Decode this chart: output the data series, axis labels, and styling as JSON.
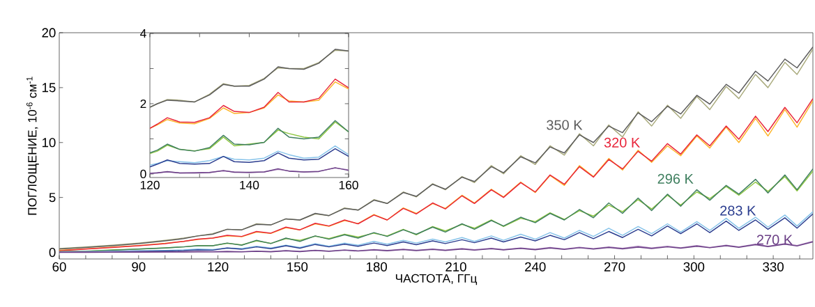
{
  "chart_data": [
    {
      "type": "line",
      "xlabel": "ЧАСТОТА, ГГц",
      "ylabel": "ПОГЛОЩЕНИЕ, 10$^{-6}$ см$^{-1}$",
      "xlim": [
        60,
        345
      ],
      "ylim": [
        -0.6,
        20
      ],
      "xticks": [
        60,
        {
          "value": 70,
          "label": null
        },
        {
          "value": 80,
          "label": null
        },
        90,
        {
          "value": 100,
          "label": null
        },
        {
          "value": 110,
          "label": null
        },
        120,
        {
          "value": 130,
          "label": null
        },
        {
          "value": 140,
          "label": null
        },
        150,
        {
          "value": 160,
          "label": null
        },
        {
          "value": 170,
          "label": null
        },
        180,
        {
          "value": 190,
          "label": null
        },
        {
          "value": 200,
          "label": null
        },
        210,
        {
          "value": 220,
          "label": null
        },
        {
          "value": 230,
          "label": null
        },
        240,
        {
          "value": 250,
          "label": null
        },
        {
          "value": 260,
          "label": null
        },
        270,
        {
          "value": 280,
          "label": null
        },
        {
          "value": 290,
          "label": null
        },
        300,
        {
          "value": 310,
          "label": null
        },
        {
          "value": 320,
          "label": null
        },
        330,
        {
          "value": 340,
          "label": null
        }
      ],
      "yticks": [
        0,
        5,
        10,
        15,
        20
      ],
      "x": [
        60,
        70,
        80,
        90,
        100,
        107,
        112.4,
        118,
        123.5,
        129,
        134.6,
        140,
        145.7,
        151,
        156.8,
        162,
        167.9,
        173,
        179,
        184,
        190.1,
        195,
        201.2,
        206,
        212.3,
        217,
        223.4,
        228,
        234.5,
        240,
        245.6,
        251,
        256.7,
        262,
        267.8,
        273,
        278.9,
        284,
        290,
        295,
        301.1,
        306,
        312.2,
        317,
        323.3,
        328,
        334.4,
        339,
        345
      ],
      "series": [
        {
          "color": "#a9aa7c",
          "values": [
            0.35,
            0.5,
            0.65,
            0.85,
            1.1,
            1.3,
            1.5,
            1.7,
            2.1,
            2.05,
            2.6,
            2.5,
            3.05,
            2.95,
            3.5,
            3.35,
            4.05,
            3.85,
            4.8,
            4.45,
            5.5,
            5.05,
            6.25,
            5.7,
            6.9,
            6.35,
            7.9,
            7.15,
            8.8,
            8.0,
            9.7,
            8.85,
            10.8,
            9.7,
            11.6,
            10.5,
            12.8,
            11.5,
            13.4,
            12.2,
            14.2,
            13.0,
            15.1,
            14.0,
            16.2,
            15.0,
            17.3,
            16.2,
            18.5
          ]
        },
        {
          "name": "350 K",
          "color": "#5c5c5c",
          "values": [
            0.3,
            0.45,
            0.6,
            0.8,
            1.05,
            1.25,
            1.5,
            1.65,
            2.1,
            2.05,
            2.55,
            2.5,
            3.05,
            2.95,
            3.55,
            3.35,
            4.0,
            3.85,
            4.75,
            4.45,
            5.45,
            5.1,
            6.2,
            5.75,
            6.85,
            6.45,
            7.8,
            7.25,
            8.7,
            8.15,
            9.6,
            9.05,
            10.7,
            10.0,
            11.5,
            10.9,
            12.7,
            11.9,
            13.3,
            12.6,
            14.3,
            13.5,
            15.3,
            14.5,
            16.5,
            15.6,
            17.6,
            16.8,
            18.7
          ]
        },
        {
          "color": "#fdb52a",
          "values": [
            0.2,
            0.32,
            0.48,
            0.62,
            0.82,
            1.0,
            1.18,
            1.3,
            1.5,
            1.42,
            1.85,
            1.72,
            2.25,
            2.05,
            2.6,
            2.38,
            2.9,
            2.62,
            3.45,
            2.95,
            4.05,
            3.55,
            4.45,
            4.0,
            5.2,
            4.5,
            5.75,
            5.05,
            6.4,
            5.45,
            7.0,
            6.1,
            7.9,
            6.9,
            8.55,
            7.5,
            9.3,
            8.2,
            9.7,
            8.8,
            10.6,
            9.5,
            11.4,
            10.0,
            12.2,
            10.6,
            13.0,
            11.4,
            13.8
          ]
        },
        {
          "name": "320 K",
          "color": "#e8253a",
          "values": [
            0.15,
            0.3,
            0.45,
            0.6,
            0.8,
            1.0,
            1.2,
            1.3,
            1.55,
            1.45,
            1.9,
            1.75,
            2.3,
            2.05,
            2.65,
            2.4,
            2.95,
            2.6,
            3.4,
            2.95,
            4.0,
            3.5,
            4.5,
            3.95,
            5.15,
            4.45,
            5.7,
            5.0,
            6.35,
            5.5,
            7.05,
            6.2,
            7.8,
            6.85,
            8.45,
            7.6,
            9.2,
            8.3,
            9.9,
            8.95,
            10.7,
            9.7,
            11.5,
            10.3,
            12.4,
            11.0,
            13.2,
            11.8,
            14.0
          ]
        },
        {
          "color": "#8dc63f",
          "values": [
            0.08,
            0.12,
            0.22,
            0.3,
            0.42,
            0.5,
            0.62,
            0.6,
            0.82,
            0.68,
            1.05,
            0.82,
            1.25,
            1.1,
            1.48,
            1.25,
            1.65,
            1.4,
            1.75,
            1.5,
            2.1,
            1.6,
            2.35,
            1.95,
            2.55,
            2.2,
            2.95,
            2.35,
            3.1,
            2.8,
            3.6,
            3.0,
            3.8,
            3.3,
            4.3,
            3.7,
            4.8,
            3.95,
            5.2,
            4.3,
            5.5,
            4.9,
            6.0,
            5.2,
            6.4,
            5.55,
            6.9,
            5.6,
            7.4
          ]
        },
        {
          "name": "296 K",
          "color": "#3f7f5f",
          "values": [
            0.05,
            0.1,
            0.2,
            0.3,
            0.4,
            0.5,
            0.6,
            0.6,
            0.85,
            0.65,
            1.1,
            0.8,
            1.3,
            1.0,
            1.5,
            1.2,
            1.6,
            1.3,
            1.8,
            1.45,
            2.05,
            1.65,
            2.3,
            1.85,
            2.6,
            2.1,
            2.9,
            2.4,
            3.2,
            2.7,
            3.55,
            2.95,
            3.9,
            3.15,
            4.5,
            3.55,
            4.95,
            3.8,
            5.3,
            4.2,
            5.7,
            4.75,
            6.1,
            5.3,
            6.65,
            5.4,
            7.05,
            5.7,
            7.6
          ]
        },
        {
          "color": "#86c3ea",
          "values": [
            0.05,
            null,
            0.1,
            0.15,
            0.18,
            0.22,
            0.3,
            0.25,
            0.4,
            0.35,
            0.55,
            0.4,
            0.65,
            0.45,
            0.8,
            0.55,
            0.85,
            0.65,
            1.0,
            0.75,
            1.1,
            0.85,
            1.2,
            0.95,
            1.35,
            1.0,
            1.5,
            1.1,
            1.65,
            1.2,
            1.8,
            1.3,
            2.0,
            1.45,
            2.2,
            1.55,
            2.35,
            1.7,
            2.6,
            1.85,
            2.8,
            2.0,
            3.1,
            2.2,
            3.2,
            2.3,
            3.4,
            2.4,
            3.7
          ]
        },
        {
          "name": "283 K",
          "color": "#2b3d8f",
          "values": [
            0.02,
            0.04,
            0.06,
            0.1,
            0.13,
            0.16,
            0.22,
            0.2,
            0.4,
            0.28,
            0.5,
            0.33,
            0.6,
            0.38,
            0.72,
            0.5,
            0.75,
            0.55,
            0.85,
            0.62,
            0.95,
            0.7,
            1.05,
            0.8,
            1.15,
            0.88,
            1.3,
            0.95,
            1.4,
            1.05,
            1.55,
            1.15,
            1.8,
            1.25,
            1.9,
            1.35,
            2.1,
            1.5,
            2.4,
            1.7,
            2.6,
            1.8,
            2.85,
            2.0,
            2.95,
            2.1,
            3.15,
            2.2,
            3.5
          ]
        },
        {
          "color": "#a57db8",
          "values": [
            0.02,
            0.03,
            0.03,
            0.05,
            0.05,
            0.06,
            0.08,
            0.06,
            0.1,
            0.06,
            0.12,
            0.08,
            0.16,
            0.1,
            0.2,
            0.12,
            0.22,
            0.15,
            0.25,
            0.17,
            0.28,
            0.2,
            0.3,
            0.21,
            0.35,
            0.24,
            0.36,
            0.26,
            0.4,
            0.28,
            0.45,
            0.3,
            0.46,
            0.34,
            0.5,
            0.36,
            0.55,
            0.4,
            0.55,
            0.42,
            0.62,
            0.45,
            0.65,
            0.5,
            0.75,
            0.55,
            0.8,
            0.62,
            1.0
          ]
        },
        {
          "name": "270 K",
          "color": "#6b3f86",
          "values": [
            0.0,
            0.0,
            0.01,
            0.02,
            0.03,
            0.03,
            0.05,
            0.04,
            0.07,
            0.04,
            0.1,
            0.05,
            0.15,
            0.07,
            0.18,
            0.1,
            0.2,
            0.12,
            0.22,
            0.14,
            0.25,
            0.16,
            0.27,
            0.18,
            0.3,
            0.2,
            0.33,
            0.22,
            0.36,
            0.24,
            0.4,
            0.27,
            0.42,
            0.3,
            0.45,
            0.32,
            0.48,
            0.35,
            0.5,
            0.38,
            0.55,
            0.42,
            0.6,
            0.46,
            0.7,
            0.52,
            0.75,
            0.58,
            0.95
          ]
        }
      ]
    },
    {
      "type": "line",
      "xlim": [
        120,
        160
      ],
      "ylim": [
        -0.1,
        4
      ],
      "xticks": [
        120,
        {
          "value": 130,
          "label": null
        },
        140,
        {
          "value": 150,
          "label": null
        },
        160
      ],
      "yticks": [
        0,
        {
          "value": 1,
          "label": null
        },
        2,
        {
          "value": 3,
          "label": null
        },
        4
      ],
      "x": [
        120,
        121.5,
        123.5,
        126,
        129,
        132,
        134.8,
        137,
        140,
        143,
        145.8,
        148,
        151,
        154,
        157.3,
        160
      ],
      "series": [
        {
          "color": "#a9aa7c",
          "values": [
            1.9,
            2.0,
            2.12,
            2.1,
            2.05,
            2.27,
            2.57,
            2.5,
            2.52,
            2.72,
            3.02,
            3.0,
            3.0,
            3.17,
            3.52,
            3.5
          ]
        },
        {
          "color": "#5c5c5c",
          "values": [
            1.9,
            2.0,
            2.1,
            2.08,
            2.05,
            2.25,
            2.55,
            2.5,
            2.5,
            2.7,
            3.05,
            3.0,
            2.98,
            3.15,
            3.55,
            3.5
          ]
        },
        {
          "color": "#fdb52a",
          "values": [
            1.3,
            1.4,
            1.55,
            1.45,
            1.43,
            1.58,
            1.88,
            1.72,
            1.75,
            1.88,
            2.25,
            2.08,
            2.05,
            2.1,
            2.62,
            2.42
          ]
        },
        {
          "color": "#e8253a",
          "values": [
            1.3,
            1.42,
            1.6,
            1.48,
            1.47,
            1.6,
            1.95,
            1.78,
            1.75,
            1.9,
            2.32,
            2.05,
            2.05,
            2.15,
            2.7,
            2.45
          ]
        },
        {
          "color": "#8dc63f",
          "values": [
            0.58,
            0.65,
            0.82,
            0.7,
            0.66,
            0.72,
            1.05,
            0.8,
            0.85,
            0.9,
            1.25,
            1.15,
            1.05,
            1.0,
            1.48,
            1.2
          ]
        },
        {
          "color": "#3f7f5f",
          "values": [
            0.6,
            0.68,
            0.85,
            0.7,
            0.65,
            0.75,
            1.1,
            0.85,
            0.83,
            0.9,
            1.3,
            1.05,
            1.0,
            1.05,
            1.52,
            1.2
          ]
        },
        {
          "color": "#86c3ea",
          "values": [
            0.25,
            0.3,
            0.38,
            0.35,
            0.32,
            0.38,
            0.5,
            0.42,
            0.4,
            0.45,
            0.65,
            0.55,
            0.45,
            0.48,
            0.8,
            0.55
          ]
        },
        {
          "color": "#2b3d8f",
          "values": [
            0.2,
            0.28,
            0.4,
            0.3,
            0.28,
            0.3,
            0.5,
            0.35,
            0.33,
            0.38,
            0.6,
            0.45,
            0.4,
            0.42,
            0.72,
            0.5
          ]
        },
        {
          "color": "#a57db8",
          "values": [
            0.02,
            0.04,
            0.06,
            0.03,
            0.04,
            0.05,
            0.09,
            0.06,
            0.04,
            0.06,
            0.13,
            0.09,
            0.06,
            0.08,
            0.17,
            0.12
          ]
        },
        {
          "color": "#6b3f86",
          "values": [
            0.02,
            0.03,
            0.07,
            0.03,
            0.03,
            0.04,
            0.1,
            0.05,
            0.05,
            0.06,
            0.15,
            0.08,
            0.06,
            0.07,
            0.18,
            0.1
          ]
        }
      ]
    }
  ]
}
